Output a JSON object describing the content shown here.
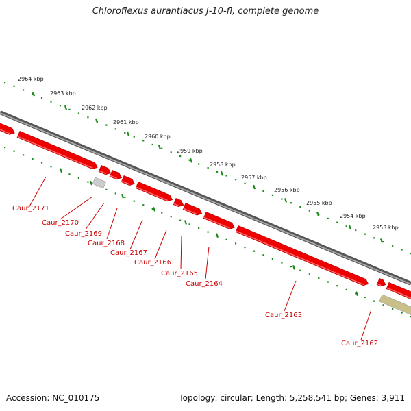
{
  "title": "Chloroflexus aurantiacus J-10-fl, complete genome",
  "footer": {
    "accession": "Accession: NC_010175",
    "summary": "Topology: circular; Length: 5,258,541 bp; Genes: 3,911"
  },
  "colors": {
    "gene": "#ee0000",
    "gene_light": "#ff6666",
    "pseudo_gene": "#cccccc",
    "rna_gene": "#c8c088",
    "backbone": "#808080",
    "ruler": "#1a8a1a",
    "label": "#cc0000"
  },
  "ruler_labels": [
    "2964 kbp",
    "2963 kbp",
    "2962 kbp",
    "2961 kbp",
    "2960 kbp",
    "2959 kbp",
    "2958 kbp",
    "2957 kbp",
    "2956 kbp",
    "2955 kbp",
    "2954 kbp",
    "2953 kbp"
  ],
  "gene_labels": [
    "Caur_2171",
    "Caur_2170",
    "Caur_2169",
    "Caur_2168",
    "Caur_2167",
    "Caur_2166",
    "Caur_2165",
    "Caur_2164",
    "Caur_2163",
    "Caur_2162"
  ]
}
